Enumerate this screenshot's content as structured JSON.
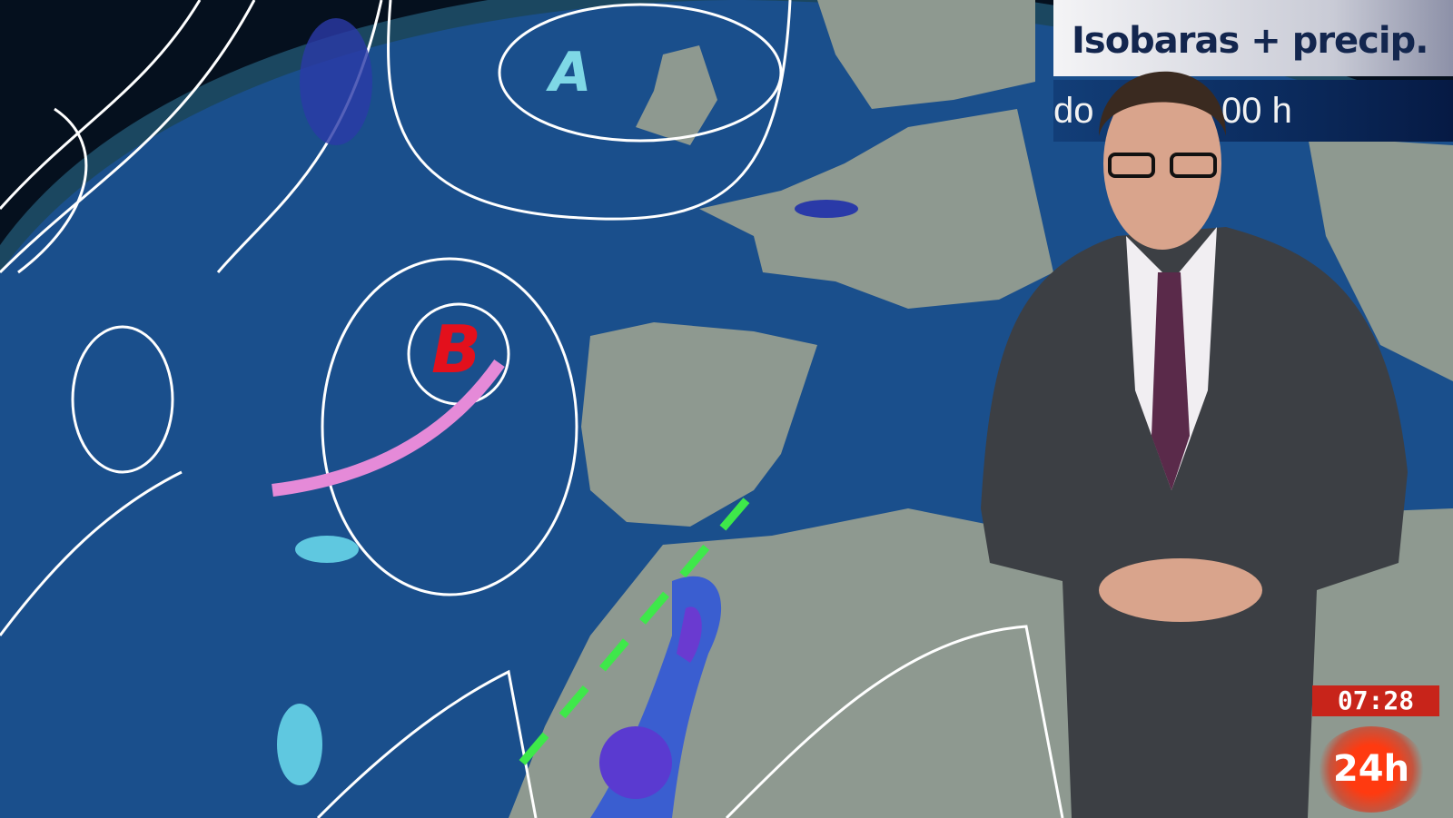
{
  "overlay": {
    "title": "Isobaras + precip.",
    "subtitle_left": "do",
    "subtitle_right": "00 h"
  },
  "map": {
    "high_pressure_label": "A",
    "low_pressure_label": "B"
  },
  "clock": "07:28",
  "channel_logo": "24h",
  "colors": {
    "ocean": "#1a4f8c",
    "land": "#8a958c",
    "low_label": "#e3101c",
    "high_label": "#7fd8e6",
    "front": "#e58ad8",
    "logo": "#e8321a",
    "title_text": "#13264e"
  }
}
